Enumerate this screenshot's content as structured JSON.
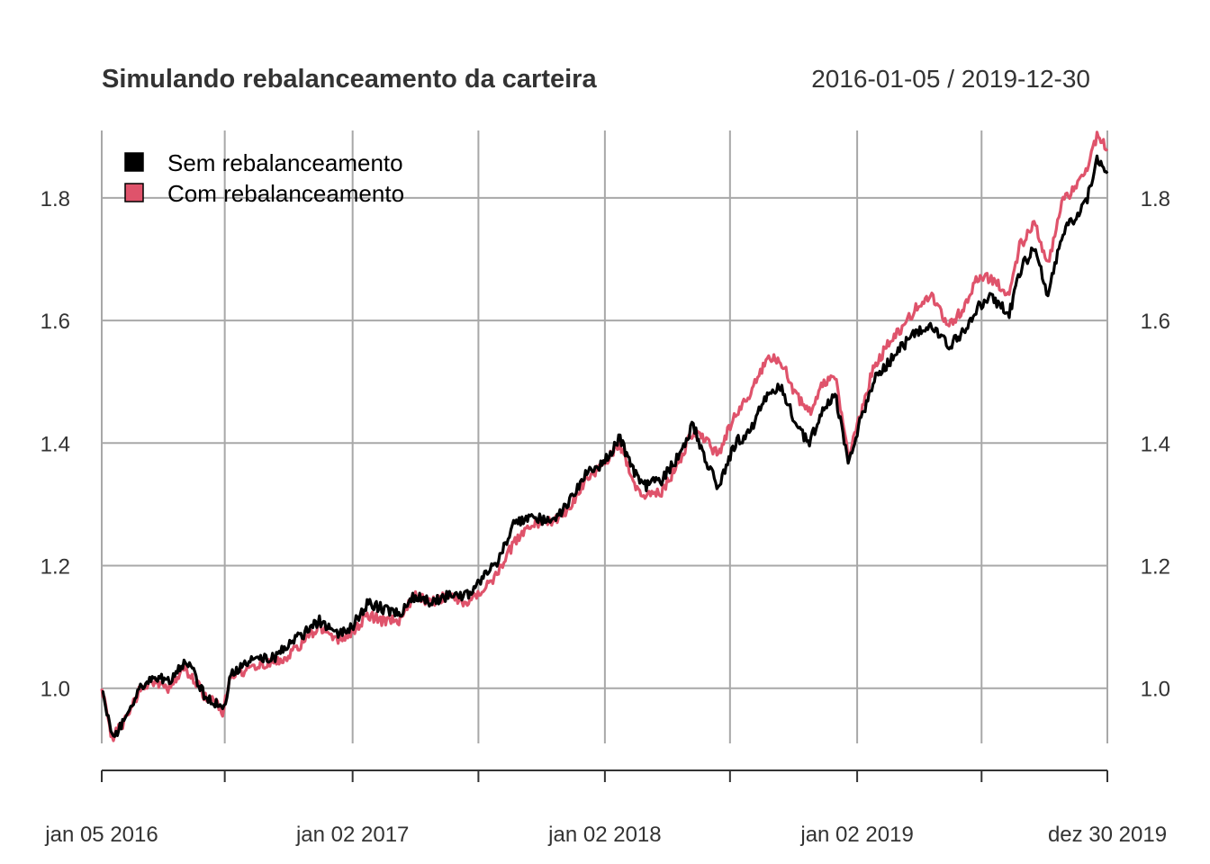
{
  "chart_data": {
    "type": "line",
    "title": "Simulando rebalanceamento da carteira",
    "date_range": "2016-01-05 / 2019-12-30",
    "xlabel": "",
    "ylabel": "",
    "x_start": "2016-01-05",
    "x_end": "2019-12-30",
    "x_ticks": [
      {
        "date": "2016-01-05",
        "label": "jan 05 2016"
      },
      {
        "date": "2016-07-01",
        "label": ""
      },
      {
        "date": "2017-01-02",
        "label": "jan 02 2017"
      },
      {
        "date": "2017-07-03",
        "label": ""
      },
      {
        "date": "2018-01-02",
        "label": "jan 02 2018"
      },
      {
        "date": "2018-07-02",
        "label": ""
      },
      {
        "date": "2019-01-02",
        "label": "jan 02 2019"
      },
      {
        "date": "2019-07-01",
        "label": ""
      },
      {
        "date": "2019-12-30",
        "label": "dez 30 2019"
      }
    ],
    "y_ticks": [
      1.0,
      1.2,
      1.4,
      1.6,
      1.8
    ],
    "y_tick_labels": [
      "1.0",
      "1.2",
      "1.4",
      "1.6",
      "1.8"
    ],
    "ylim": [
      0.91,
      1.91
    ],
    "grid": true,
    "legend_position": "top-left",
    "series": [
      {
        "name": "Sem rebalanceamento",
        "color": "#000000",
        "x": [
          "2016-01-05",
          "2016-01-20",
          "2016-02-10",
          "2016-03-01",
          "2016-03-20",
          "2016-04-10",
          "2016-05-01",
          "2016-05-15",
          "2016-06-01",
          "2016-06-15",
          "2016-06-28",
          "2016-07-10",
          "2016-08-01",
          "2016-08-20",
          "2016-09-10",
          "2016-10-01",
          "2016-10-25",
          "2016-11-15",
          "2016-12-10",
          "2017-01-01",
          "2017-01-25",
          "2017-02-15",
          "2017-03-10",
          "2017-04-01",
          "2017-04-25",
          "2017-05-20",
          "2017-06-15",
          "2017-07-10",
          "2017-08-01",
          "2017-08-25",
          "2017-09-20",
          "2017-10-15",
          "2017-11-10",
          "2017-12-05",
          "2018-01-02",
          "2018-01-24",
          "2018-02-10",
          "2018-03-01",
          "2018-03-25",
          "2018-04-20",
          "2018-05-10",
          "2018-05-25",
          "2018-06-15",
          "2018-07-10",
          "2018-08-01",
          "2018-08-25",
          "2018-09-15",
          "2018-10-05",
          "2018-10-25",
          "2018-11-15",
          "2018-12-01",
          "2018-12-20",
          "2019-01-02",
          "2019-01-25",
          "2019-02-15",
          "2019-03-10",
          "2019-03-28",
          "2019-04-20",
          "2019-05-15",
          "2019-06-05",
          "2019-06-25",
          "2019-07-15",
          "2019-08-10",
          "2019-08-25",
          "2019-09-15",
          "2019-10-05",
          "2019-10-25",
          "2019-11-15",
          "2019-12-01",
          "2019-12-15",
          "2019-12-30"
        ],
        "values": [
          1.0,
          0.92,
          0.95,
          1.0,
          1.02,
          1.01,
          1.04,
          1.03,
          0.99,
          0.98,
          0.96,
          1.02,
          1.04,
          1.05,
          1.05,
          1.07,
          1.09,
          1.11,
          1.09,
          1.1,
          1.14,
          1.13,
          1.12,
          1.15,
          1.14,
          1.15,
          1.15,
          1.18,
          1.21,
          1.27,
          1.28,
          1.27,
          1.3,
          1.35,
          1.37,
          1.41,
          1.36,
          1.33,
          1.34,
          1.38,
          1.43,
          1.38,
          1.33,
          1.4,
          1.42,
          1.48,
          1.49,
          1.43,
          1.4,
          1.46,
          1.48,
          1.37,
          1.42,
          1.5,
          1.53,
          1.56,
          1.58,
          1.59,
          1.56,
          1.58,
          1.62,
          1.64,
          1.61,
          1.68,
          1.72,
          1.64,
          1.74,
          1.77,
          1.8,
          1.86,
          1.84
        ]
      },
      {
        "name": "Com rebalanceamento",
        "color": "#DF536B",
        "x": [
          "2016-01-05",
          "2016-01-20",
          "2016-02-10",
          "2016-03-01",
          "2016-03-20",
          "2016-04-10",
          "2016-05-01",
          "2016-05-15",
          "2016-06-01",
          "2016-06-15",
          "2016-06-28",
          "2016-07-10",
          "2016-08-01",
          "2016-08-20",
          "2016-09-10",
          "2016-10-01",
          "2016-10-25",
          "2016-11-15",
          "2016-12-10",
          "2017-01-01",
          "2017-01-25",
          "2017-02-15",
          "2017-03-10",
          "2017-04-01",
          "2017-04-25",
          "2017-05-20",
          "2017-06-15",
          "2017-07-10",
          "2017-08-01",
          "2017-08-25",
          "2017-09-20",
          "2017-10-15",
          "2017-11-10",
          "2017-12-05",
          "2018-01-02",
          "2018-01-24",
          "2018-02-10",
          "2018-03-01",
          "2018-03-25",
          "2018-04-20",
          "2018-05-10",
          "2018-05-25",
          "2018-06-15",
          "2018-07-10",
          "2018-08-01",
          "2018-08-25",
          "2018-09-15",
          "2018-10-05",
          "2018-10-25",
          "2018-11-15",
          "2018-12-01",
          "2018-12-20",
          "2019-01-02",
          "2019-01-25",
          "2019-02-15",
          "2019-03-10",
          "2019-03-28",
          "2019-04-20",
          "2019-05-15",
          "2019-06-05",
          "2019-06-25",
          "2019-07-15",
          "2019-08-10",
          "2019-08-25",
          "2019-09-15",
          "2019-10-05",
          "2019-10-25",
          "2019-11-15",
          "2019-12-01",
          "2019-12-15",
          "2019-12-30"
        ],
        "values": [
          1.0,
          0.92,
          0.95,
          1.0,
          1.01,
          1.0,
          1.03,
          1.02,
          0.99,
          0.98,
          0.96,
          1.02,
          1.03,
          1.04,
          1.04,
          1.05,
          1.08,
          1.1,
          1.08,
          1.09,
          1.12,
          1.11,
          1.11,
          1.15,
          1.14,
          1.15,
          1.14,
          1.16,
          1.19,
          1.24,
          1.27,
          1.27,
          1.29,
          1.34,
          1.37,
          1.4,
          1.34,
          1.31,
          1.32,
          1.37,
          1.42,
          1.41,
          1.38,
          1.45,
          1.48,
          1.54,
          1.53,
          1.48,
          1.45,
          1.5,
          1.51,
          1.38,
          1.43,
          1.52,
          1.56,
          1.59,
          1.62,
          1.64,
          1.59,
          1.62,
          1.67,
          1.67,
          1.64,
          1.72,
          1.76,
          1.69,
          1.79,
          1.82,
          1.85,
          1.9,
          1.88
        ]
      }
    ]
  }
}
